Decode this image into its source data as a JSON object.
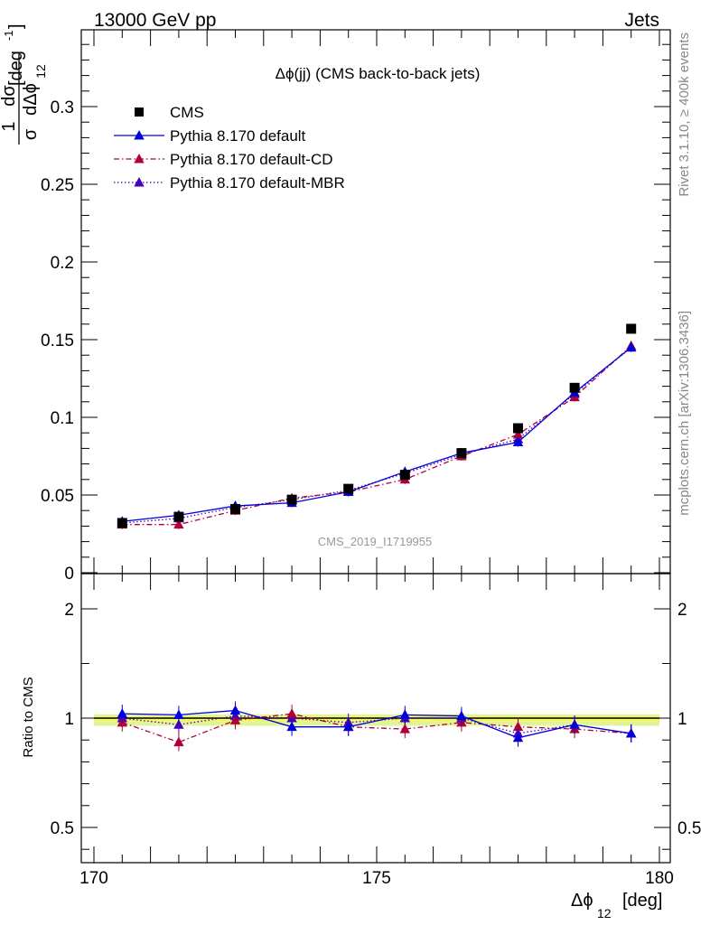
{
  "header": {
    "left": "13000 GeV pp",
    "right": "Jets"
  },
  "side_labels": {
    "rivet": "Rivet 3.1.10, ≥ 400k events",
    "mcplots": "mcplots.cern.ch [arXiv:1306.3436]"
  },
  "chart_data": {
    "type": "line",
    "title": "Δϕ(jj) (CMS back-to-back jets)",
    "analysis_id": "CMS_2019_I1719955",
    "xlabel": "Δϕ",
    "xlabel_sub": "12",
    "xlabel_unit": "[deg]",
    "ylabel": {
      "numerator": "1",
      "numerator_right": "dσ",
      "denominator": "σ",
      "denominator_right": "dΔϕ",
      "sub": "12",
      "unit": "[deg",
      "unit_sup": "-1",
      "unit_close": "]"
    },
    "ratio_ylabel": "Ratio to CMS",
    "xlim": [
      170,
      180
    ],
    "ylim": [
      0,
      0.35
    ],
    "ratio_ylim": [
      0.35,
      2.3
    ],
    "x_ticks": [
      {
        "v": 170,
        "label": "170"
      },
      {
        "v": 175,
        "label": "175"
      },
      {
        "v": 180,
        "label": "180"
      }
    ],
    "y_ticks": [
      {
        "v": 0,
        "label": "0"
      },
      {
        "v": 0.05,
        "label": "0.05"
      },
      {
        "v": 0.1,
        "label": "0.1"
      },
      {
        "v": 0.15,
        "label": "0.15"
      },
      {
        "v": 0.2,
        "label": "0.2"
      },
      {
        "v": 0.25,
        "label": "0.25"
      },
      {
        "v": 0.3,
        "label": "0.3"
      }
    ],
    "ratio_y_ticks": [
      {
        "v": 0.5,
        "label": "0.5"
      },
      {
        "v": 1,
        "label": "1"
      },
      {
        "v": 2,
        "label": "2"
      }
    ],
    "legend_position": "top-left",
    "grid": false,
    "x": [
      170.5,
      171.5,
      172.5,
      173.5,
      174.5,
      175.5,
      176.5,
      177.5,
      178.5,
      179.5
    ],
    "data": {
      "name": "CMS",
      "color": "#000000",
      "values": [
        0.032,
        0.036,
        0.041,
        0.047,
        0.054,
        0.063,
        0.077,
        0.093,
        0.119,
        0.157
      ]
    },
    "series": [
      {
        "name": "Pythia 8.170 default",
        "color": "#0000dd",
        "dash": "solid",
        "values": [
          0.033,
          0.037,
          0.043,
          0.045,
          0.052,
          0.065,
          0.077,
          0.084,
          0.116,
          0.145
        ],
        "ratio": [
          1.04,
          1.03,
          1.07,
          0.96,
          0.96,
          1.03,
          1.02,
          0.91,
          0.97,
          0.93
        ]
      },
      {
        "name": "Pythia 8.170 default-CD",
        "color": "#b0003a",
        "dash": "dashdot",
        "values": [
          0.031,
          0.031,
          0.04,
          0.048,
          0.052,
          0.06,
          0.075,
          0.089,
          0.113,
          0.146
        ],
        "ratio": [
          0.98,
          0.89,
          0.99,
          1.04,
          0.96,
          0.95,
          0.98,
          0.96,
          0.95,
          0.93
        ]
      },
      {
        "name": "Pythia 8.170 default-MBR",
        "color": "#4400bb",
        "dash": "dotted",
        "values": [
          0.032,
          0.035,
          0.042,
          0.047,
          0.053,
          0.064,
          0.076,
          0.086,
          0.115,
          0.145
        ],
        "ratio": [
          1.0,
          0.97,
          1.02,
          1.0,
          0.98,
          1.0,
          1.0,
          0.93,
          0.97,
          0.93
        ]
      }
    ]
  }
}
